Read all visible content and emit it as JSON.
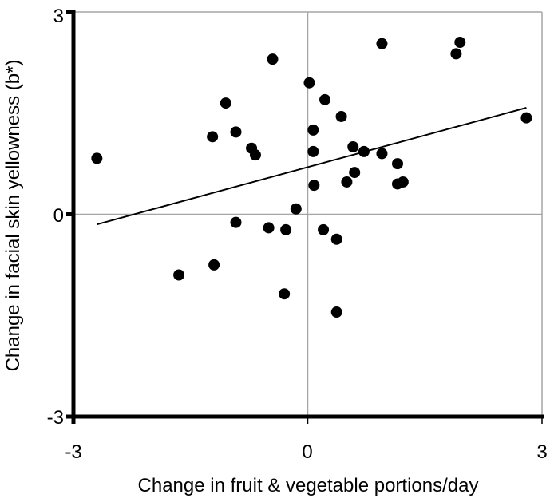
{
  "chart_data": {
    "type": "scatter",
    "title": "",
    "xlabel": "Change in fruit & vegetable portions/day",
    "ylabel": "Change in facial skin yellowness (b*)",
    "xlim": [
      -3,
      3
    ],
    "ylim": [
      -3,
      3
    ],
    "x_ticks": [
      "-3",
      "0",
      "3"
    ],
    "y_ticks": [
      "3",
      "0",
      "-3"
    ],
    "grid": true,
    "legend": "none",
    "trendline": {
      "x": [
        -2.7,
        2.8
      ],
      "y": [
        -0.15,
        1.58
      ]
    },
    "points": [
      {
        "x": -2.7,
        "y": 0.83
      },
      {
        "x": -1.65,
        "y": -0.9
      },
      {
        "x": -1.22,
        "y": 1.15
      },
      {
        "x": -1.2,
        "y": -0.75
      },
      {
        "x": -1.05,
        "y": 1.65
      },
      {
        "x": -0.92,
        "y": 1.22
      },
      {
        "x": -0.92,
        "y": -0.12
      },
      {
        "x": -0.72,
        "y": 0.98
      },
      {
        "x": -0.67,
        "y": 0.88
      },
      {
        "x": -0.5,
        "y": -0.2
      },
      {
        "x": -0.45,
        "y": 2.3
      },
      {
        "x": -0.3,
        "y": -1.18
      },
      {
        "x": -0.28,
        "y": -0.23
      },
      {
        "x": -0.15,
        "y": 0.08
      },
      {
        "x": 0.02,
        "y": 1.95
      },
      {
        "x": 0.07,
        "y": 1.25
      },
      {
        "x": 0.07,
        "y": 0.93
      },
      {
        "x": 0.08,
        "y": 0.43
      },
      {
        "x": 0.2,
        "y": -0.23
      },
      {
        "x": 0.22,
        "y": 1.7
      },
      {
        "x": 0.37,
        "y": -0.37
      },
      {
        "x": 0.37,
        "y": -1.45
      },
      {
        "x": 0.43,
        "y": 1.45
      },
      {
        "x": 0.5,
        "y": 0.48
      },
      {
        "x": 0.58,
        "y": 1.0
      },
      {
        "x": 0.6,
        "y": 0.62
      },
      {
        "x": 0.72,
        "y": 0.93
      },
      {
        "x": 0.95,
        "y": 0.9
      },
      {
        "x": 0.95,
        "y": 2.53
      },
      {
        "x": 1.15,
        "y": 0.75
      },
      {
        "x": 1.15,
        "y": 0.45
      },
      {
        "x": 1.22,
        "y": 0.48
      },
      {
        "x": 1.9,
        "y": 2.38
      },
      {
        "x": 1.95,
        "y": 2.55
      },
      {
        "x": 2.8,
        "y": 1.43
      }
    ],
    "colors": {
      "points": "#000000",
      "grid": "#a6a6a6",
      "axis": "#000000",
      "trendline": "#000000"
    }
  }
}
